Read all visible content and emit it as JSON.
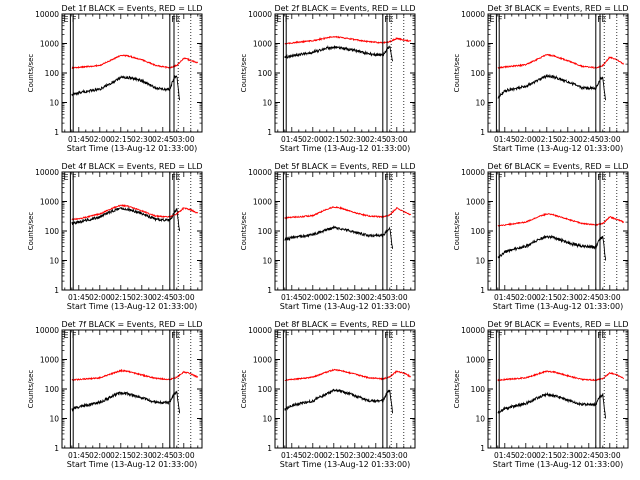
{
  "colors": {
    "events": "#000000",
    "lld": "#ff0000",
    "axes": "#000000",
    "background": "#ffffff"
  },
  "chart_data": [
    {
      "type": "line",
      "title": "Det 1f BLACK = Events, RED = LLD",
      "xlabel": "Start Time (13-Aug-12 01:33:00)",
      "ylabel": "Counts/sec",
      "x_tick_labels": [
        "01:45",
        "02:00",
        "02:15",
        "02:30",
        "02:45",
        "03:00"
      ],
      "y_tick_labels": [
        "1",
        "10",
        "100",
        "1000",
        "10000"
      ],
      "y_scale": "log",
      "ylim": [
        1,
        10000
      ],
      "xlim": [
        "01:33",
        "03:13"
      ],
      "flags": [
        "E",
        "F",
        "F",
        "E"
      ],
      "event_marker_times": [
        "01:39",
        "01:41",
        "02:50",
        "02:53"
      ],
      "dotted_marker_times": [
        "02:56",
        "03:05"
      ],
      "series": [
        {
          "name": "BLACK = Events",
          "color": "#000000",
          "x": [
            "01:40",
            "01:45",
            "02:00",
            "02:10",
            "02:15",
            "02:20",
            "02:30",
            "02:40",
            "02:50",
            "02:53",
            "02:55",
            "02:57"
          ],
          "values": [
            18,
            22,
            28,
            50,
            70,
            72,
            55,
            30,
            28,
            70,
            80,
            12
          ]
        },
        {
          "name": "RED = LLD",
          "color": "#ff0000",
          "x": [
            "01:40",
            "01:45",
            "02:00",
            "02:10",
            "02:15",
            "02:20",
            "02:30",
            "02:40",
            "02:50",
            "02:55",
            "03:00",
            "03:05",
            "03:10"
          ],
          "values": [
            150,
            155,
            180,
            300,
            400,
            380,
            280,
            180,
            150,
            180,
            320,
            270,
            220
          ]
        }
      ]
    },
    {
      "type": "line",
      "title": "Det 2f BLACK = Events, RED = LLD",
      "xlabel": "Start Time (13-Aug-12 01:33:00)",
      "ylabel": "Counts/sec",
      "x_tick_labels": [
        "01:45",
        "02:00",
        "02:15",
        "02:30",
        "02:45",
        "03:00"
      ],
      "y_tick_labels": [
        "1",
        "10",
        "100",
        "1000",
        "10000"
      ],
      "y_scale": "log",
      "ylim": [
        1,
        10000
      ],
      "xlim": [
        "01:33",
        "03:13"
      ],
      "flags": [
        "E",
        "F",
        "F",
        "E"
      ],
      "event_marker_times": [
        "01:39",
        "01:41",
        "02:50",
        "02:53"
      ],
      "dotted_marker_times": [
        "02:56",
        "03:05"
      ],
      "series": [
        {
          "name": "BLACK = Events",
          "color": "#000000",
          "x": [
            "01:40",
            "01:45",
            "02:00",
            "02:10",
            "02:15",
            "02:20",
            "02:30",
            "02:40",
            "02:50",
            "02:53",
            "02:55",
            "02:57"
          ],
          "values": [
            350,
            380,
            500,
            700,
            750,
            700,
            580,
            450,
            400,
            600,
            800,
            250
          ]
        },
        {
          "name": "RED = LLD",
          "color": "#ff0000",
          "x": [
            "01:40",
            "01:45",
            "02:00",
            "02:10",
            "02:15",
            "02:20",
            "02:30",
            "02:40",
            "02:50",
            "02:55",
            "03:00",
            "03:05",
            "03:10"
          ],
          "values": [
            1000,
            1050,
            1250,
            1550,
            1700,
            1600,
            1350,
            1150,
            1050,
            1150,
            1500,
            1300,
            1200
          ]
        }
      ]
    },
    {
      "type": "line",
      "title": "Det 3f BLACK = Events, RED = LLD",
      "xlabel": "Start Time (13-Aug-12 01:33:00)",
      "ylabel": "Counts/sec",
      "x_tick_labels": [
        "01:45",
        "02:00",
        "02:15",
        "02:30",
        "02:45",
        "03:00"
      ],
      "y_tick_labels": [
        "1",
        "10",
        "100",
        "1000",
        "10000"
      ],
      "y_scale": "log",
      "ylim": [
        1,
        10000
      ],
      "xlim": [
        "01:33",
        "03:13"
      ],
      "flags": [
        "E",
        "F",
        "F",
        "E"
      ],
      "event_marker_times": [
        "01:39",
        "01:41",
        "02:50",
        "02:53"
      ],
      "dotted_marker_times": [
        "02:56",
        "03:05"
      ],
      "series": [
        {
          "name": "BLACK = Events",
          "color": "#000000",
          "x": [
            "01:40",
            "01:45",
            "02:00",
            "02:10",
            "02:15",
            "02:20",
            "02:30",
            "02:40",
            "02:50",
            "02:53",
            "02:55",
            "02:57"
          ],
          "values": [
            15,
            25,
            35,
            60,
            80,
            75,
            50,
            32,
            30,
            60,
            70,
            12
          ]
        },
        {
          "name": "RED = LLD",
          "color": "#ff0000",
          "x": [
            "01:40",
            "01:45",
            "02:00",
            "02:10",
            "02:15",
            "02:20",
            "02:30",
            "02:40",
            "02:50",
            "02:55",
            "03:00",
            "03:05",
            "03:10"
          ],
          "values": [
            150,
            160,
            190,
            320,
            420,
            380,
            260,
            170,
            150,
            180,
            350,
            280,
            200
          ]
        }
      ]
    },
    {
      "type": "line",
      "title": "Det 4f BLACK = Events, RED = LLD",
      "xlabel": "Start Time (13-Aug-12 01:33:00)",
      "ylabel": "Counts/sec",
      "x_tick_labels": [
        "01:45",
        "02:00",
        "02:15",
        "02:30",
        "02:45",
        "03:00"
      ],
      "y_tick_labels": [
        "1",
        "10",
        "100",
        "1000",
        "10000"
      ],
      "y_scale": "log",
      "ylim": [
        1,
        10000
      ],
      "xlim": [
        "01:33",
        "03:13"
      ],
      "flags": [
        "E",
        "F",
        "F",
        "E"
      ],
      "event_marker_times": [
        "01:39",
        "01:41",
        "02:50",
        "02:53"
      ],
      "dotted_marker_times": [
        "02:56",
        "03:05"
      ],
      "series": [
        {
          "name": "BLACK = Events",
          "color": "#000000",
          "x": [
            "01:40",
            "01:45",
            "02:00",
            "02:10",
            "02:15",
            "02:20",
            "02:30",
            "02:40",
            "02:50",
            "02:53",
            "02:55",
            "02:57"
          ],
          "values": [
            180,
            200,
            300,
            500,
            600,
            550,
            380,
            250,
            230,
            400,
            550,
            100
          ]
        },
        {
          "name": "RED = LLD",
          "color": "#ff0000",
          "x": [
            "01:40",
            "01:45",
            "02:00",
            "02:10",
            "02:15",
            "02:20",
            "02:30",
            "02:40",
            "02:50",
            "02:55",
            "03:00",
            "03:05",
            "03:10"
          ],
          "values": [
            250,
            260,
            380,
            620,
            750,
            700,
            480,
            320,
            300,
            380,
            600,
            520,
            400
          ]
        }
      ]
    },
    {
      "type": "line",
      "title": "Det 5f BLACK = Events, RED = LLD",
      "xlabel": "Start Time (13-Aug-12 01:33:00)",
      "ylabel": "Counts/sec",
      "x_tick_labels": [
        "01:45",
        "02:00",
        "02:15",
        "02:30",
        "02:45",
        "03:00"
      ],
      "y_tick_labels": [
        "1",
        "10",
        "100",
        "1000",
        "10000"
      ],
      "y_scale": "log",
      "ylim": [
        1,
        10000
      ],
      "xlim": [
        "01:33",
        "03:13"
      ],
      "flags": [
        "E",
        "F",
        "F",
        "E"
      ],
      "event_marker_times": [
        "01:39",
        "01:41",
        "02:50",
        "02:53"
      ],
      "dotted_marker_times": [
        "02:56",
        "03:05"
      ],
      "series": [
        {
          "name": "BLACK = Events",
          "color": "#000000",
          "x": [
            "01:40",
            "01:45",
            "02:00",
            "02:10",
            "02:15",
            "02:20",
            "02:30",
            "02:40",
            "02:50",
            "02:53",
            "02:55",
            "02:57"
          ],
          "values": [
            50,
            60,
            75,
            110,
            130,
            120,
            90,
            70,
            70,
            100,
            120,
            25
          ]
        },
        {
          "name": "RED = LLD",
          "color": "#ff0000",
          "x": [
            "01:40",
            "01:45",
            "02:00",
            "02:10",
            "02:15",
            "02:20",
            "02:30",
            "02:40",
            "02:50",
            "02:55",
            "03:00",
            "03:05",
            "03:10"
          ],
          "values": [
            280,
            290,
            330,
            550,
            650,
            600,
            420,
            320,
            300,
            350,
            600,
            450,
            350
          ]
        }
      ]
    },
    {
      "type": "line",
      "title": "Det 6f BLACK = Events, RED = LLD",
      "xlabel": "Start Time (13-Aug-12 01:33:00)",
      "ylabel": "Counts/sec",
      "x_tick_labels": [
        "01:45",
        "02:00",
        "02:15",
        "02:30",
        "02:45",
        "03:00"
      ],
      "y_tick_labels": [
        "1",
        "10",
        "100",
        "1000",
        "10000"
      ],
      "y_scale": "log",
      "ylim": [
        1,
        10000
      ],
      "xlim": [
        "01:33",
        "03:13"
      ],
      "flags": [
        "E",
        "F",
        "F",
        "E"
      ],
      "event_marker_times": [
        "01:39",
        "01:41",
        "02:50",
        "02:53"
      ],
      "dotted_marker_times": [
        "02:56",
        "03:05"
      ],
      "series": [
        {
          "name": "BLACK = Events",
          "color": "#000000",
          "x": [
            "01:40",
            "01:45",
            "02:00",
            "02:10",
            "02:15",
            "02:20",
            "02:30",
            "02:40",
            "02:50",
            "02:53",
            "02:55",
            "02:57"
          ],
          "values": [
            12,
            20,
            30,
            55,
            65,
            60,
            40,
            30,
            28,
            55,
            65,
            10
          ]
        },
        {
          "name": "RED = LLD",
          "color": "#ff0000",
          "x": [
            "01:40",
            "01:45",
            "02:00",
            "02:10",
            "02:15",
            "02:20",
            "02:30",
            "02:40",
            "02:50",
            "02:55",
            "03:00",
            "03:05",
            "03:10"
          ],
          "values": [
            150,
            160,
            200,
            320,
            380,
            350,
            250,
            180,
            160,
            180,
            300,
            250,
            200
          ]
        }
      ]
    },
    {
      "type": "line",
      "title": "Det 7f BLACK = Events, RED = LLD",
      "xlabel": "Start Time (13-Aug-12 01:33:00)",
      "ylabel": "Counts/sec",
      "x_tick_labels": [
        "01:45",
        "02:00",
        "02:15",
        "02:30",
        "02:45",
        "03:00"
      ],
      "y_tick_labels": [
        "1",
        "10",
        "100",
        "1000",
        "10000"
      ],
      "y_scale": "log",
      "ylim": [
        1,
        10000
      ],
      "xlim": [
        "01:33",
        "03:13"
      ],
      "flags": [
        "E",
        "F",
        "F",
        "E"
      ],
      "event_marker_times": [
        "01:39",
        "01:41",
        "02:50",
        "02:53"
      ],
      "dotted_marker_times": [
        "02:56",
        "03:05"
      ],
      "series": [
        {
          "name": "BLACK = Events",
          "color": "#000000",
          "x": [
            "01:40",
            "01:45",
            "02:00",
            "02:10",
            "02:15",
            "02:20",
            "02:30",
            "02:40",
            "02:50",
            "02:53",
            "02:55",
            "02:57"
          ],
          "values": [
            20,
            25,
            35,
            60,
            75,
            70,
            50,
            35,
            35,
            65,
            80,
            15
          ]
        },
        {
          "name": "RED = LLD",
          "color": "#ff0000",
          "x": [
            "01:40",
            "01:45",
            "02:00",
            "02:10",
            "02:15",
            "02:20",
            "02:30",
            "02:40",
            "02:50",
            "02:55",
            "03:00",
            "03:05",
            "03:10"
          ],
          "values": [
            200,
            210,
            240,
            350,
            420,
            400,
            300,
            230,
            210,
            250,
            380,
            330,
            250
          ]
        }
      ]
    },
    {
      "type": "line",
      "title": "Det 8f BLACK = Events, RED = LLD",
      "xlabel": "Start Time (13-Aug-12 01:33:00)",
      "ylabel": "Counts/sec",
      "x_tick_labels": [
        "01:45",
        "02:00",
        "02:15",
        "02:30",
        "02:45",
        "03:00"
      ],
      "y_tick_labels": [
        "1",
        "10",
        "100",
        "1000",
        "10000"
      ],
      "y_scale": "log",
      "ylim": [
        1,
        10000
      ],
      "xlim": [
        "01:33",
        "03:13"
      ],
      "flags": [
        "E",
        "F",
        "F",
        "E"
      ],
      "event_marker_times": [
        "01:39",
        "01:41",
        "02:50",
        "02:53"
      ],
      "dotted_marker_times": [
        "02:56",
        "03:05"
      ],
      "series": [
        {
          "name": "BLACK = Events",
          "color": "#000000",
          "x": [
            "01:40",
            "01:45",
            "02:00",
            "02:10",
            "02:15",
            "02:20",
            "02:30",
            "02:40",
            "02:50",
            "02:53",
            "02:55",
            "02:57"
          ],
          "values": [
            20,
            28,
            40,
            70,
            90,
            85,
            60,
            40,
            40,
            75,
            90,
            15
          ]
        },
        {
          "name": "RED = LLD",
          "color": "#ff0000",
          "x": [
            "01:40",
            "01:45",
            "02:00",
            "02:10",
            "02:15",
            "02:20",
            "02:30",
            "02:40",
            "02:50",
            "02:55",
            "03:00",
            "03:05",
            "03:10"
          ],
          "values": [
            200,
            210,
            250,
            380,
            450,
            420,
            320,
            240,
            220,
            260,
            400,
            350,
            260
          ]
        }
      ]
    },
    {
      "type": "line",
      "title": "Det 9f BLACK = Events, RED = LLD",
      "xlabel": "Start Time (13-Aug-12 01:33:00)",
      "ylabel": "Counts/sec",
      "x_tick_labels": [
        "01:45",
        "02:00",
        "02:15",
        "02:30",
        "02:45",
        "03:00"
      ],
      "y_tick_labels": [
        "1",
        "10",
        "100",
        "1000",
        "10000"
      ],
      "y_scale": "log",
      "ylim": [
        1,
        10000
      ],
      "xlim": [
        "01:33",
        "03:13"
      ],
      "flags": [
        "E",
        "F",
        "F",
        "E"
      ],
      "event_marker_times": [
        "01:39",
        "01:41",
        "02:50",
        "02:53"
      ],
      "dotted_marker_times": [
        "02:56",
        "03:05"
      ],
      "series": [
        {
          "name": "BLACK = Events",
          "color": "#000000",
          "x": [
            "01:40",
            "01:45",
            "02:00",
            "02:10",
            "02:15",
            "02:20",
            "02:30",
            "02:40",
            "02:50",
            "02:53",
            "02:55",
            "02:57"
          ],
          "values": [
            15,
            22,
            32,
            55,
            65,
            60,
            42,
            30,
            30,
            55,
            65,
            10
          ]
        },
        {
          "name": "RED = LLD",
          "color": "#ff0000",
          "x": [
            "01:40",
            "01:45",
            "02:00",
            "02:10",
            "02:15",
            "02:20",
            "02:30",
            "02:40",
            "02:50",
            "02:55",
            "03:00",
            "03:05",
            "03:10"
          ],
          "values": [
            200,
            210,
            240,
            340,
            400,
            380,
            280,
            210,
            200,
            230,
            350,
            300,
            230
          ]
        }
      ]
    }
  ]
}
